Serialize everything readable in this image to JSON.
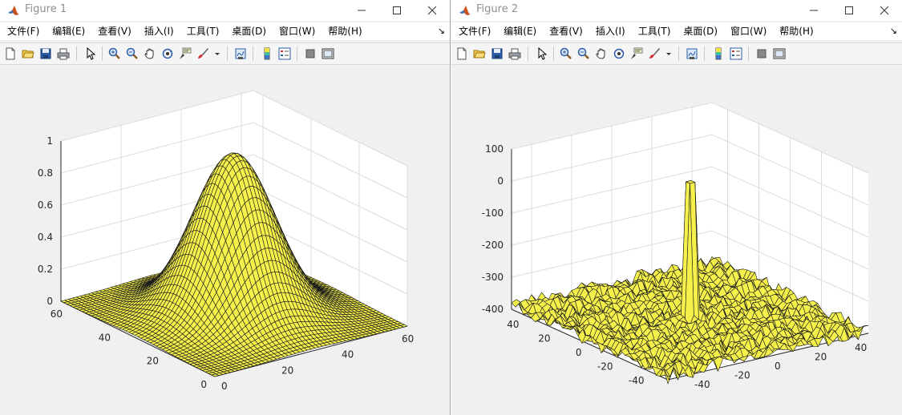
{
  "windows": [
    {
      "title": "Figure 1",
      "menu": [
        "文件(F)",
        "编辑(E)",
        "查看(V)",
        "插入(I)",
        "工具(T)",
        "桌面(D)",
        "窗口(W)",
        "帮助(H)"
      ],
      "plot": {
        "surface": "gaussian",
        "face_color": "#f5f04a",
        "z_ticks": [
          "0",
          "0.2",
          "0.4",
          "0.6",
          "0.8",
          "1"
        ],
        "left_axis_ticks": [
          "0",
          "20",
          "40",
          "60"
        ],
        "right_axis_ticks": [
          "0",
          "20",
          "40",
          "60"
        ]
      }
    },
    {
      "title": "Figure 2",
      "menu": [
        "文件(F)",
        "编辑(E)",
        "查看(V)",
        "插入(I)",
        "工具(T)",
        "桌面(D)",
        "窗口(W)",
        "帮助(H)"
      ],
      "plot": {
        "surface": "noise-with-spike",
        "face_color": "#f5f04a",
        "z_ticks": [
          "-400",
          "-300",
          "-200",
          "-100",
          "0",
          "100"
        ],
        "left_axis_ticks": [
          "-40",
          "-20",
          "0",
          "20",
          "40"
        ],
        "right_axis_ticks": [
          "-40",
          "-20",
          "0",
          "20",
          "40"
        ]
      }
    }
  ],
  "toolbar_icons": [
    "new-figure-icon",
    "open-file-icon",
    "save-icon",
    "print-icon",
    "edit-plot-icon",
    "zoom-in-icon",
    "zoom-out-icon",
    "pan-icon",
    "rotate-3d-icon",
    "data-cursor-icon",
    "brush-icon",
    "brush-dropdown-icon",
    "link-plot-icon",
    "colorbar-icon",
    "legend-icon",
    "hide-plot-tools-icon",
    "show-plot-tools-icon"
  ],
  "menu_overflow": "↘"
}
